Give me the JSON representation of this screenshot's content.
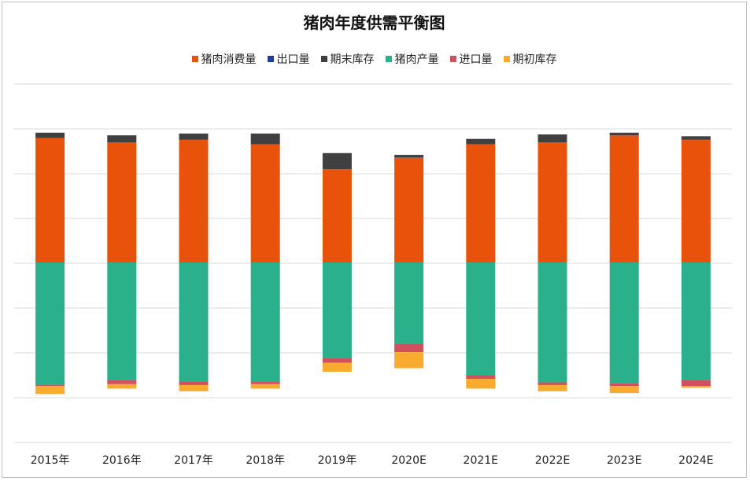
{
  "chart_data": {
    "type": "bar",
    "title": "猪肉年度供需平衡图",
    "legend_position": "top",
    "grid": true,
    "categories": [
      "2015年",
      "2016年",
      "2017年",
      "2018年",
      "2019年",
      "2020E",
      "2021E",
      "2022E",
      "2023E",
      "2024E"
    ],
    "series": [
      {
        "name": "猪肉消费量",
        "color": "#e8520a",
        "direction": "up",
        "values": [
          140,
          135,
          138,
          133,
          105,
          118,
          133,
          135,
          143,
          138
        ]
      },
      {
        "name": "出口量",
        "color": "#1f3d99",
        "direction": "up",
        "values": [
          0.2,
          0.2,
          0.2,
          0.2,
          0.2,
          0.2,
          0.2,
          0.2,
          0.2,
          0.2
        ]
      },
      {
        "name": "期末库存",
        "color": "#404040",
        "direction": "up",
        "values": [
          6,
          8,
          7,
          12,
          18,
          3,
          6,
          9,
          3,
          4
        ]
      },
      {
        "name": "猪肉产量",
        "color": "#2bb08c",
        "direction": "down",
        "values": [
          138,
          132,
          134,
          134,
          108,
          92,
          127,
          135,
          136,
          132
        ]
      },
      {
        "name": "进口量",
        "color": "#d0505e",
        "direction": "down",
        "values": [
          1,
          5,
          4,
          3,
          5,
          9,
          4,
          3,
          3,
          7
        ]
      },
      {
        "name": "期初库存",
        "color": "#f8ab2e",
        "direction": "down",
        "values": [
          9,
          5,
          7,
          5,
          10,
          18,
          11,
          7,
          8,
          2
        ]
      }
    ]
  }
}
